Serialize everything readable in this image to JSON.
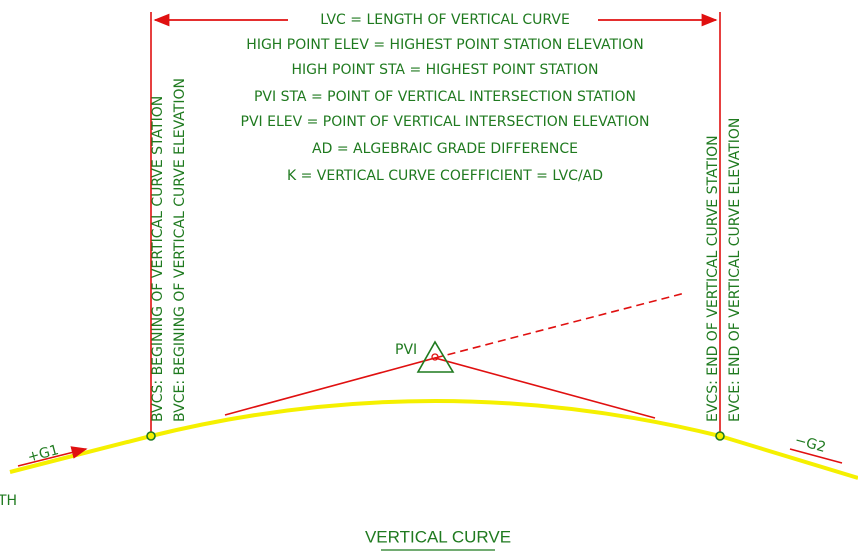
{
  "diagram": {
    "top_label": "LVC = LENGTH OF VERTICAL CURVE",
    "definitions": [
      "HIGH POINT ELEV = HIGHEST POINT STATION ELEVATION",
      "HIGH POINT STA = HIGHEST POINT STATION",
      "PVI STA = POINT OF VERTICAL INTERSECTION STATION",
      "PVI ELEV = POINT OF VERTICAL INTERSECTION ELEVATION",
      "AD = ALGEBRAIC GRADE DIFFERENCE",
      "K = VERTICAL CURVE COEFFICIENT = LVC/AD"
    ],
    "left_labels": [
      "BVCS: BEGINING OF VERTICAL CURVE STATION",
      "BVCE: BEGINING OF VERTICAL CURVE ELEVATION"
    ],
    "right_labels": [
      "EVCS: END OF VERTICAL CURVE STATION",
      "EVCE: END OF VERTICAL CURVE ELEVATION"
    ],
    "pvi_label": "PVI",
    "grade_in": "+G1",
    "grade_out": "−G2",
    "cut_text": "TH",
    "caption": "VERTICAL CURVE"
  }
}
